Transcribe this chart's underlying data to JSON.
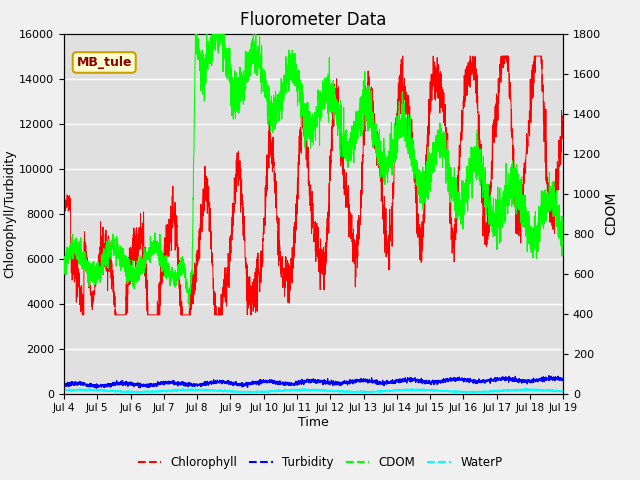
{
  "title": "Fluorometer Data",
  "xlabel": "Time",
  "ylabel_left": "Chlorophyll/Turbidity",
  "ylabel_right": "CDOM",
  "annotation": "MB_tule",
  "ylim_left": [
    0,
    16000
  ],
  "ylim_right": [
    0,
    1800
  ],
  "xlim": [
    0,
    15
  ],
  "xtick_labels": [
    "Jul 4",
    "Jul 5",
    "Jul 6",
    "Jul 7",
    "Jul 8",
    "Jul 9",
    "Jul 10",
    "Jul 11",
    "Jul 12",
    "Jul 13",
    "Jul 14",
    "Jul 15",
    "Jul 16",
    "Jul 17",
    "Jul 18",
    "Jul 19"
  ],
  "legend_entries": [
    "Chlorophyll",
    "Turbidity",
    "CDOM",
    "WaterP"
  ],
  "bg_color": "#f0f0f0",
  "plot_bg_color": "#e0e0e0",
  "title_fontsize": 12,
  "annotation_color": "#8b0000",
  "annotation_bg": "#ffffd0",
  "annotation_border": "#c8a000"
}
